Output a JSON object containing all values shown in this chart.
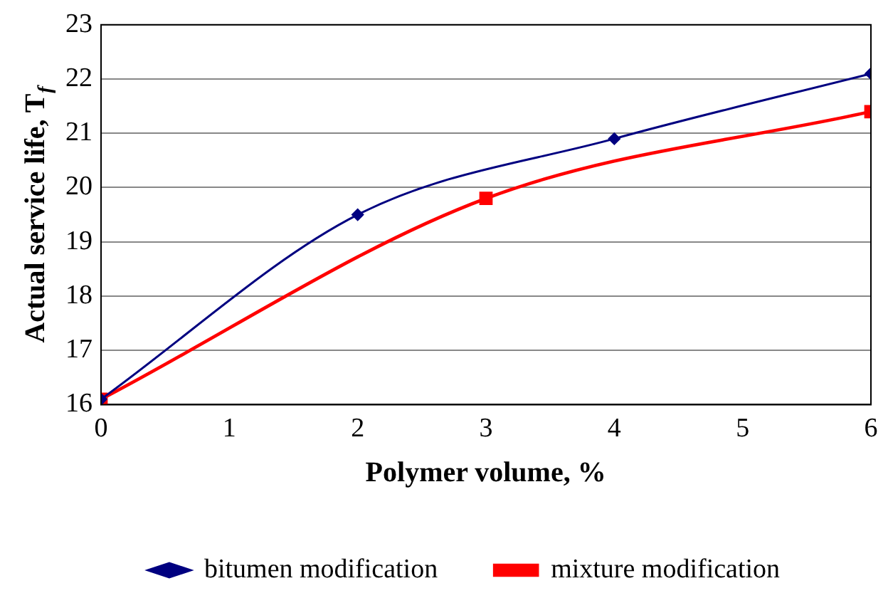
{
  "chart_data": {
    "type": "line",
    "xlabel": "Polymer volume, %",
    "ylabel": "Actual service life, T$_{f}$",
    "xlim": [
      0,
      6
    ],
    "xticks": [
      0,
      1,
      2,
      3,
      4,
      5,
      6
    ],
    "ylim": [
      16,
      23
    ],
    "yticks": [
      16,
      17,
      18,
      19,
      20,
      21,
      22,
      23
    ],
    "grid": "y",
    "legend": "bottom",
    "series": [
      {
        "name": "bitumen modification",
        "color": "#000080",
        "marker": "diamond",
        "x": [
          0,
          2,
          4,
          6
        ],
        "values": [
          16.1,
          19.5,
          20.9,
          22.1
        ]
      },
      {
        "name": "mixture modification",
        "color": "#ff0000",
        "marker": "square",
        "x": [
          0,
          3,
          6
        ],
        "values": [
          16.1,
          19.8,
          21.4
        ]
      }
    ]
  }
}
